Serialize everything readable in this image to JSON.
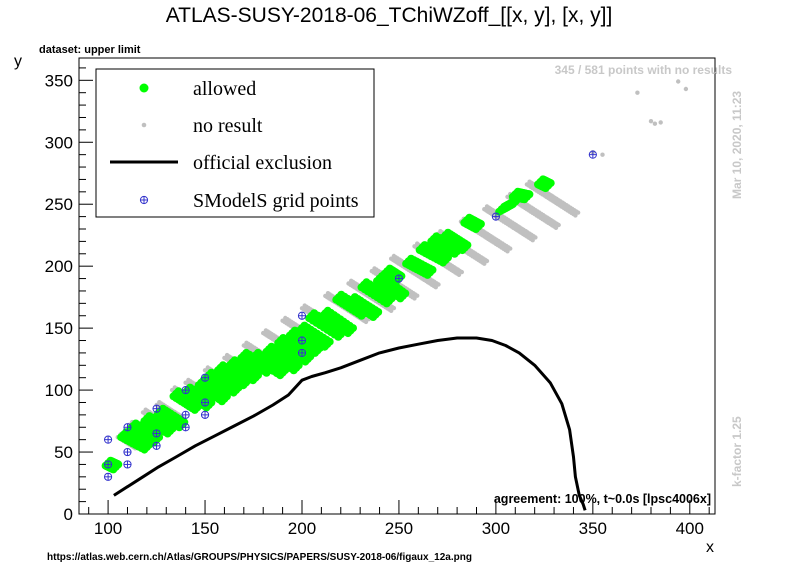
{
  "title": "ATLAS-SUSY-2018-06_TChiWZoff_[[x, y], [x, y]]",
  "dataset_label": "dataset: upper limit",
  "count_label": "345 / 581 points with no results",
  "timestamp": "Mar 10, 2020, 11:23",
  "kfactor": "k-factor 1.25",
  "agreement": "agreement: 100%, t~0.0s [lpsc4006x]",
  "source_url": "https://atlas.web.cern.ch/Atlas/GROUPS/PHYSICS/PAPERS/SUSY-2018-06/figaux_12a.png",
  "colors": {
    "allowed": "#00ff00",
    "no_result": "#c0c0c0",
    "exclusion": "#000000",
    "grid_points": "#3333cc"
  },
  "chart_data": {
    "type": "scatter",
    "xlabel": "x",
    "ylabel": "y",
    "xlim": [
      85,
      413
    ],
    "ylim": [
      0,
      368
    ],
    "x_ticks": [
      100,
      150,
      200,
      250,
      300,
      350,
      400
    ],
    "y_ticks": [
      0,
      50,
      100,
      150,
      200,
      250,
      300,
      350
    ],
    "grid": false,
    "legend_position": "top-left",
    "legend": [
      {
        "key": "allowed",
        "label": "allowed",
        "marker": "filled-circle"
      },
      {
        "key": "no_result",
        "label": "no result",
        "marker": "small-dot"
      },
      {
        "key": "exclusion",
        "label": "official exclusion",
        "marker": "line"
      },
      {
        "key": "grid_points",
        "label": "SModelS grid points",
        "marker": "open-cross"
      }
    ],
    "diagonal_bands": [
      {
        "x0": 100,
        "y0": 40,
        "len": 3
      },
      {
        "x0": 105,
        "y0": 62,
        "len": 9
      },
      {
        "x0": 111,
        "y0": 72,
        "len": 10
      },
      {
        "x0": 118,
        "y0": 82,
        "len": 11
      },
      {
        "x0": 125,
        "y0": 88,
        "len": 12
      },
      {
        "x0": 133,
        "y0": 100,
        "len": 13
      },
      {
        "x0": 140,
        "y0": 106,
        "len": 14
      },
      {
        "x0": 150,
        "y0": 116,
        "len": 15
      },
      {
        "x0": 160,
        "y0": 126,
        "len": 16
      },
      {
        "x0": 170,
        "y0": 136,
        "len": 17
      },
      {
        "x0": 180,
        "y0": 146,
        "len": 18
      },
      {
        "x0": 190,
        "y0": 156,
        "len": 19
      },
      {
        "x0": 200,
        "y0": 166,
        "len": 20
      },
      {
        "x0": 212,
        "y0": 176,
        "len": 21
      },
      {
        "x0": 224,
        "y0": 186,
        "len": 22
      },
      {
        "x0": 236,
        "y0": 196,
        "len": 22
      },
      {
        "x0": 246,
        "y0": 206,
        "len": 23
      },
      {
        "x0": 258,
        "y0": 216,
        "len": 23
      },
      {
        "x0": 270,
        "y0": 226,
        "len": 24
      },
      {
        "x0": 282,
        "y0": 236,
        "len": 24
      },
      {
        "x0": 294,
        "y0": 246,
        "len": 25
      },
      {
        "x0": 306,
        "y0": 256,
        "len": 25
      },
      {
        "x0": 316,
        "y0": 266,
        "len": 25
      }
    ],
    "allowed_segments": [
      [
        100,
        41,
        104,
        38
      ],
      [
        108,
        64,
        120,
        54
      ],
      [
        113,
        71,
        125,
        60
      ],
      [
        120,
        77,
        132,
        67
      ],
      [
        127,
        83,
        138,
        72
      ],
      [
        135,
        97,
        146,
        86
      ],
      [
        141,
        100,
        152,
        88
      ],
      [
        148,
        106,
        160,
        93
      ],
      [
        152,
        112,
        166,
        100
      ],
      [
        158,
        118,
        171,
        106
      ],
      [
        164,
        122,
        176,
        110
      ],
      [
        170,
        128,
        183,
        116
      ],
      [
        176,
        128,
        190,
        114
      ],
      [
        183,
        133,
        197,
        118
      ],
      [
        189,
        140,
        203,
        125
      ],
      [
        195,
        146,
        208,
        132
      ],
      [
        200,
        150,
        213,
        137
      ],
      [
        205,
        160,
        220,
        145
      ],
      [
        212,
        162,
        225,
        148
      ],
      [
        219,
        175,
        232,
        162
      ],
      [
        226,
        173,
        238,
        161
      ],
      [
        232,
        185,
        245,
        172
      ],
      [
        240,
        190,
        252,
        176
      ],
      [
        244,
        196,
        250,
        190
      ],
      [
        255,
        204,
        266,
        195
      ],
      [
        262,
        215,
        274,
        205
      ],
      [
        268,
        222,
        280,
        212
      ],
      [
        274,
        225,
        284,
        215
      ],
      [
        285,
        237,
        291,
        232
      ],
      [
        303,
        246,
        310,
        252
      ],
      [
        310,
        258,
        316,
        256
      ],
      [
        323,
        268,
        327,
        265
      ]
    ],
    "no_result_extra": [
      [
        373,
        340
      ],
      [
        382,
        315
      ],
      [
        380,
        317
      ],
      [
        385,
        316
      ],
      [
        394,
        349
      ],
      [
        398,
        343
      ],
      [
        350,
        292
      ],
      [
        355,
        290
      ]
    ],
    "exclusion_curve": [
      [
        103,
        15
      ],
      [
        110,
        22
      ],
      [
        118,
        30
      ],
      [
        126,
        38
      ],
      [
        135,
        46
      ],
      [
        145,
        55
      ],
      [
        155,
        63
      ],
      [
        165,
        71
      ],
      [
        175,
        79
      ],
      [
        185,
        88
      ],
      [
        193,
        96
      ],
      [
        200,
        108
      ],
      [
        205,
        111
      ],
      [
        212,
        114
      ],
      [
        220,
        118
      ],
      [
        230,
        124
      ],
      [
        240,
        130
      ],
      [
        250,
        134
      ],
      [
        260,
        137
      ],
      [
        270,
        140
      ],
      [
        280,
        142
      ],
      [
        290,
        142
      ],
      [
        298,
        140
      ],
      [
        305,
        136
      ],
      [
        312,
        130
      ],
      [
        320,
        120
      ],
      [
        328,
        106
      ],
      [
        334,
        89
      ],
      [
        338,
        68
      ],
      [
        340,
        46
      ],
      [
        341,
        30
      ],
      [
        343,
        15
      ],
      [
        345,
        8
      ],
      [
        346,
        3
      ]
    ],
    "grid_points": [
      [
        100,
        30
      ],
      [
        100,
        40
      ],
      [
        100,
        60
      ],
      [
        110,
        40
      ],
      [
        110,
        50
      ],
      [
        110,
        70
      ],
      [
        125,
        55
      ],
      [
        125,
        65
      ],
      [
        125,
        85
      ],
      [
        140,
        70
      ],
      [
        140,
        80
      ],
      [
        140,
        100
      ],
      [
        150,
        80
      ],
      [
        150,
        90
      ],
      [
        150,
        110
      ],
      [
        200,
        130
      ],
      [
        200,
        140
      ],
      [
        200,
        160
      ],
      [
        250,
        190
      ],
      [
        300,
        240
      ],
      [
        350,
        290
      ]
    ]
  }
}
